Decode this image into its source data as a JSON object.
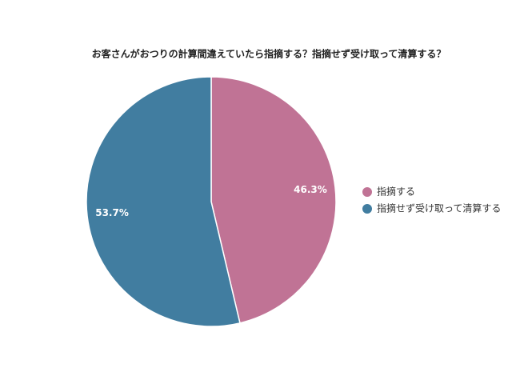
{
  "chart_data": {
    "type": "pie",
    "title": "お客さんがおつりの計算間違えていたら指摘する？指摘せず受け取って清算する？",
    "categories": [
      "指摘する",
      "指摘せず受け取って清算する"
    ],
    "values": [
      46.3,
      53.7
    ],
    "value_labels": [
      "46.3%",
      "53.7%"
    ],
    "colors": [
      "#c07395",
      "#417da0"
    ],
    "legend": "right"
  }
}
